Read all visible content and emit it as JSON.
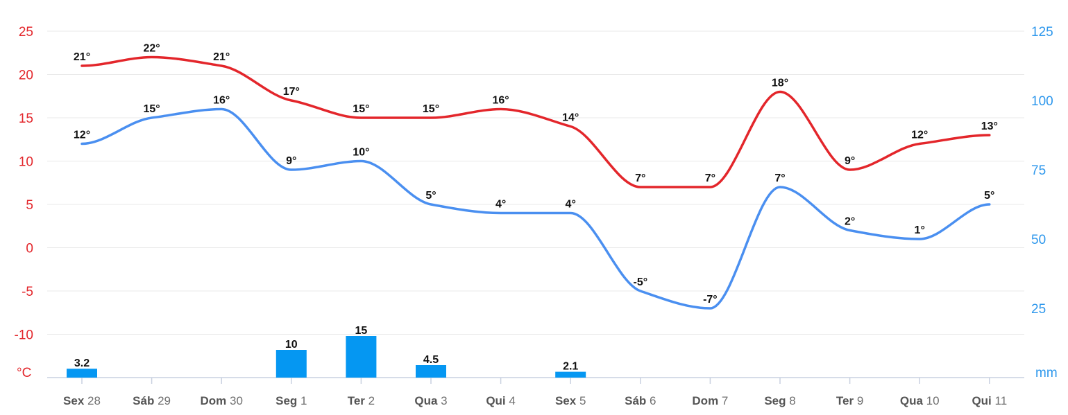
{
  "chart_data": {
    "type": "line",
    "categories": [
      {
        "day": "Sex",
        "num": "28"
      },
      {
        "day": "Sáb",
        "num": "29"
      },
      {
        "day": "Dom",
        "num": "30"
      },
      {
        "day": "Seg",
        "num": "1"
      },
      {
        "day": "Ter",
        "num": "2"
      },
      {
        "day": "Qua",
        "num": "3"
      },
      {
        "day": "Qui",
        "num": "4"
      },
      {
        "day": "Sex",
        "num": "5"
      },
      {
        "day": "Sáb",
        "num": "6"
      },
      {
        "day": "Dom",
        "num": "7"
      },
      {
        "day": "Seg",
        "num": "8"
      },
      {
        "day": "Ter",
        "num": "9"
      },
      {
        "day": "Qua",
        "num": "10"
      },
      {
        "day": "Qui",
        "num": "11"
      }
    ],
    "series": [
      {
        "color": "#e3262b",
        "axis": "left",
        "values": [
          21,
          22,
          21,
          17,
          15,
          15,
          16,
          14,
          7,
          7,
          18,
          9,
          12,
          13
        ],
        "labels": [
          "21°",
          "22°",
          "21°",
          "17°",
          "15°",
          "15°",
          "16°",
          "14°",
          "7°",
          "7°",
          "18°",
          "9°",
          "12°",
          "13°"
        ]
      },
      {
        "color": "#4a8ff0",
        "axis": "left",
        "values": [
          12,
          15,
          16,
          9,
          10,
          5,
          4,
          4,
          -5,
          -7,
          7,
          2,
          1,
          5
        ],
        "labels": [
          "12°",
          "15°",
          "16°",
          "9°",
          "10°",
          "5°",
          "4°",
          "4°",
          "-5°",
          "-7°",
          "7°",
          "2°",
          "1°",
          "5°"
        ]
      }
    ],
    "bars": {
      "color": "#0597f2",
      "axis": "right",
      "values": [
        3.2,
        0,
        0,
        10,
        15,
        4.5,
        0,
        2.1,
        0,
        0,
        0,
        0,
        0,
        0
      ],
      "labels": [
        "3.2",
        "",
        "",
        "10",
        "15",
        "4.5",
        "",
        "2.1",
        "",
        "",
        "",
        "",
        "",
        ""
      ]
    },
    "y_left": {
      "ticks": [
        "25",
        "20",
        "15",
        "10",
        "5",
        "0",
        "-5",
        "-10"
      ],
      "unit": "°C",
      "range": [
        -15,
        25
      ],
      "color": "#e3262b"
    },
    "y_right": {
      "ticks": [
        "125",
        "100",
        "75",
        "50",
        "25"
      ],
      "unit": "mm",
      "range": [
        0,
        125
      ],
      "color": "#2d97ec"
    },
    "grid": true
  }
}
